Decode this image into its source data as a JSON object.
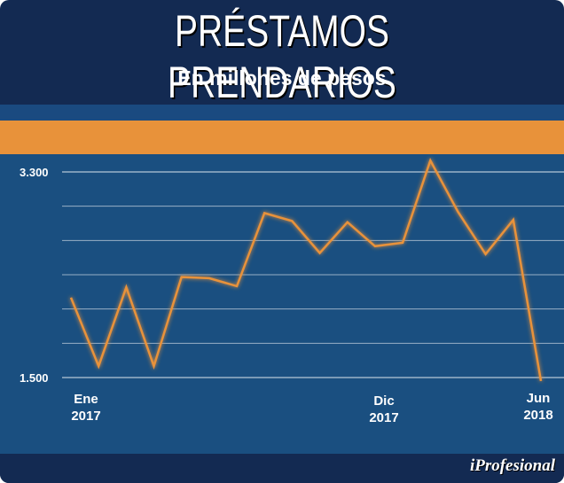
{
  "header": {
    "title": "PRÉSTAMOS PRENDARIOS",
    "subtitle": "En millones de pesos"
  },
  "brand": "iProfesional",
  "colors": {
    "background": "#132a52",
    "plot": "#1a4f80",
    "accent": "#e8923a",
    "line": "#e8923a"
  },
  "chart_data": {
    "type": "line",
    "title": "PRÉSTAMOS PRENDARIOS",
    "subtitle": "En millones de pesos",
    "xlabel": "",
    "ylabel": "",
    "ylim": [
      1500,
      3300
    ],
    "yticks": [
      "3.300",
      "1.500"
    ],
    "x_labels": [
      {
        "index": 0,
        "line1": "Ene",
        "line2": "2017"
      },
      {
        "index": 11,
        "line1": "Dic",
        "line2": "2017"
      },
      {
        "index": 17,
        "line1": "Jun",
        "line2": "2018"
      }
    ],
    "series": [
      {
        "name": "Préstamos prendarios",
        "values": [
          2200,
          1600,
          2290,
          1600,
          2380,
          2370,
          2300,
          2940,
          2870,
          2590,
          2860,
          2650,
          2680,
          3400,
          2950,
          2580,
          2880,
          1470
        ]
      }
    ]
  }
}
